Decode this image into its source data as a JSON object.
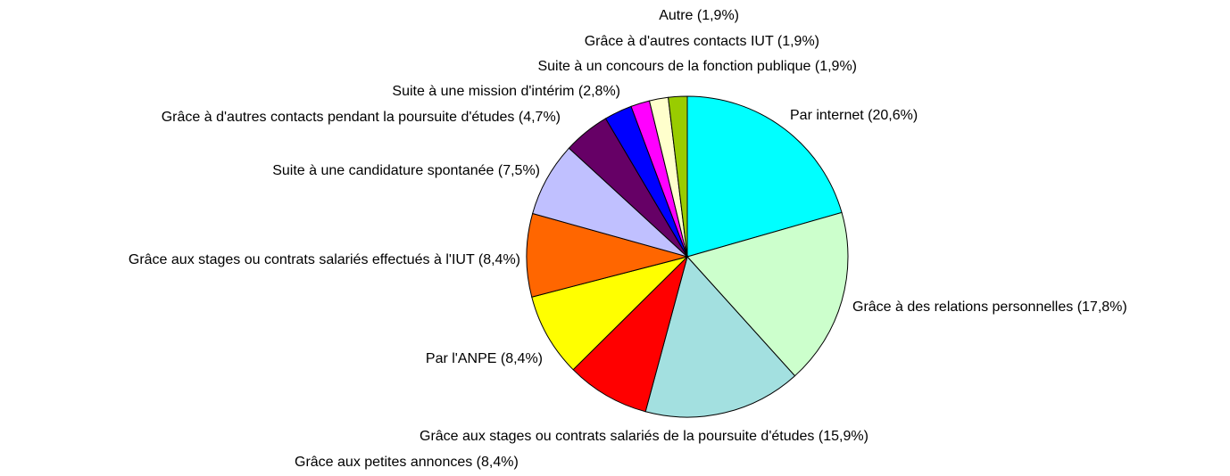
{
  "chart_data": {
    "type": "pie",
    "categories": [
      "Par internet (20,6%)",
      "Grâce à des relations personnelles (17,8%)",
      "Grâce aux stages ou contrats salariés de la poursuite d'études (15,9%)",
      "Grâce aux petites annonces (8,4%)",
      "Par l'ANPE (8,4%)",
      "Grâce aux stages ou contrats salariés effectués à l'IUT (8,4%)",
      "Suite à une candidature spontanée (7,5%)",
      "Grâce à d'autres contacts pendant la poursuite d'études (4,7%)",
      "Suite à une mission d'intérim (2,8%)",
      "Suite à un concours de la fonction publique (1,9%)",
      "Grâce à d'autres contacts IUT (1,9%)",
      "Autre (1,9%)"
    ],
    "values": [
      20.6,
      17.8,
      15.9,
      8.4,
      8.4,
      8.4,
      7.5,
      4.7,
      2.8,
      1.9,
      1.9,
      1.9
    ],
    "colors": [
      "#00ffff",
      "#ccffcc",
      "#a3e0e0",
      "#ff0000",
      "#ffff00",
      "#ff6600",
      "#c0c0ff",
      "#660066",
      "#0000ff",
      "#ff00ff",
      "#ffffcc",
      "#99cc00"
    ]
  }
}
